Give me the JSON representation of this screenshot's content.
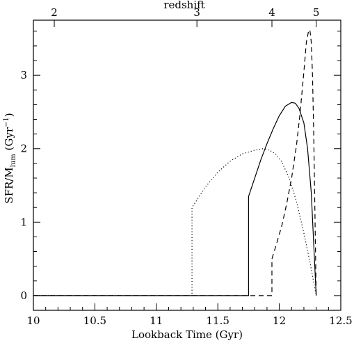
{
  "chart_data": {
    "type": "line",
    "title": "",
    "xlabel": "Lookback Time (Gyr)",
    "ylabel_parts": {
      "main": "SFR/M",
      "sub": "lum",
      "unit_open": " (Gyr",
      "unit_sup": "−1",
      "unit_close": ")"
    },
    "top_axis_label": "redshift",
    "xlim": [
      10,
      12.5
    ],
    "ylim": [
      -0.2,
      3.75
    ],
    "x_ticks": [
      10,
      10.5,
      11,
      11.5,
      12,
      12.5
    ],
    "x_tick_labels": [
      "10",
      "10.5",
      "11",
      "11.5",
      "12",
      "12.5"
    ],
    "y_ticks": [
      0,
      1,
      2,
      3
    ],
    "y_tick_labels": [
      "0",
      "1",
      "2",
      "3"
    ],
    "top_ticks": [
      {
        "label": "2",
        "x": 10.17
      },
      {
        "label": "3",
        "x": 11.33
      },
      {
        "label": "4",
        "x": 11.94
      },
      {
        "label": "5",
        "x": 12.3
      }
    ],
    "grid": false,
    "legend": "none",
    "series": [
      {
        "style": "solid",
        "x": [
          10,
          11.75,
          11.75,
          11.8,
          11.85,
          11.9,
          11.95,
          12.0,
          12.05,
          12.1,
          12.13,
          12.16,
          12.2,
          12.23,
          12.26,
          12.28,
          12.3
        ],
        "y": [
          0,
          0,
          1.35,
          1.6,
          1.85,
          2.07,
          2.27,
          2.45,
          2.58,
          2.63,
          2.62,
          2.55,
          2.35,
          2.0,
          1.4,
          0.7,
          0
        ]
      },
      {
        "style": "dashed",
        "x": [
          10,
          11.94,
          11.94,
          11.98,
          12.02,
          12.06,
          12.1,
          12.14,
          12.17,
          12.2,
          12.22,
          12.24,
          12.25,
          12.26,
          12.27,
          12.28,
          12.29,
          12.3
        ],
        "y": [
          0,
          0,
          0.5,
          0.72,
          0.95,
          1.25,
          1.6,
          2.05,
          2.5,
          3.05,
          3.45,
          3.62,
          3.6,
          3.45,
          3.0,
          2.2,
          1.1,
          0
        ]
      },
      {
        "style": "dotted",
        "x": [
          10,
          11.29,
          11.29,
          11.4,
          11.5,
          11.6,
          11.7,
          11.8,
          11.86,
          11.92,
          11.97,
          12.02,
          12.08,
          12.14,
          12.2,
          12.25,
          12.3
        ],
        "y": [
          0,
          0,
          1.2,
          1.48,
          1.68,
          1.83,
          1.93,
          1.98,
          2.0,
          1.98,
          1.93,
          1.82,
          1.6,
          1.28,
          0.85,
          0.45,
          0
        ]
      }
    ]
  }
}
